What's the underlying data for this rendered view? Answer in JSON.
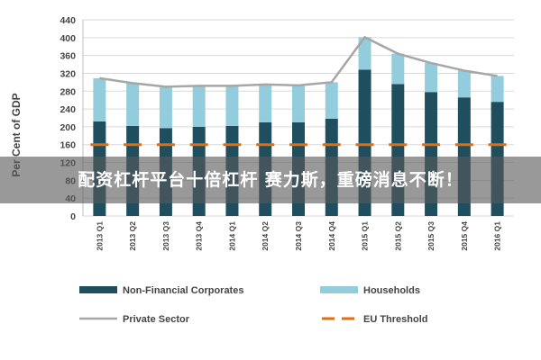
{
  "chart_data": {
    "type": "bar",
    "stacked": true,
    "ylabel": "Per Cent of GDP",
    "ylim": [
      0,
      440
    ],
    "yticks": [
      0,
      40,
      80,
      120,
      160,
      200,
      240,
      280,
      320,
      360,
      400,
      440
    ],
    "grid": true,
    "categories": [
      "2013 Q1",
      "2013 Q2",
      "2013 Q3",
      "2013 Q4",
      "2014 Q1",
      "2014 Q2",
      "2014 Q3",
      "2014 Q4",
      "2015 Q1",
      "2015 Q2",
      "2015 Q3",
      "2015 Q4",
      "2016 Q1"
    ],
    "series": [
      {
        "name": "Non-Financial Corporates",
        "kind": "bar",
        "color": "#1f4e5f",
        "values": [
          212,
          202,
          197,
          200,
          202,
          210,
          210,
          218,
          328,
          296,
          278,
          266,
          256
        ]
      },
      {
        "name": "Households",
        "kind": "bar",
        "color": "#93cddd",
        "values": [
          97,
          96,
          93,
          92,
          90,
          85,
          83,
          82,
          73,
          68,
          65,
          60,
          58
        ]
      },
      {
        "name": "Private Sector",
        "kind": "line",
        "color": "#a6a6a6",
        "values": [
          309,
          298,
          290,
          292,
          292,
          295,
          293,
          300,
          401,
          364,
          343,
          326,
          314
        ]
      },
      {
        "name": "EU Threshold",
        "kind": "dashed-line",
        "color": "#e46c0a",
        "values": [
          160,
          160,
          160,
          160,
          160,
          160,
          160,
          160,
          160,
          160,
          160,
          160,
          160
        ]
      }
    ],
    "legend_position": "bottom"
  },
  "overlay": {
    "text": "配资杠杆平台十倍杠杆 赛力斯，重磅消息不断！"
  }
}
